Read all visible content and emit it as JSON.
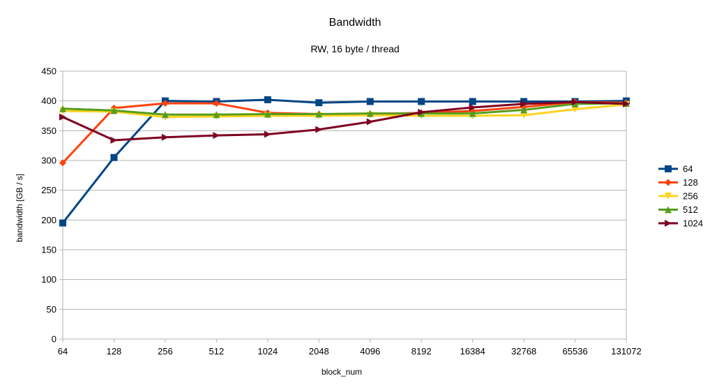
{
  "chart_data": {
    "type": "line",
    "title": "Bandwidth",
    "subtitle": "RW, 16 byte / thread",
    "xlabel": "block_num",
    "ylabel": "bandwidth [GB / s]",
    "categories": [
      "64",
      "128",
      "256",
      "512",
      "1024",
      "2048",
      "4096",
      "8192",
      "16384",
      "32768",
      "65536",
      "131072"
    ],
    "ylim": [
      0,
      450
    ],
    "yticks": [
      0,
      50,
      100,
      150,
      200,
      250,
      300,
      350,
      400,
      450
    ],
    "grid": "horizontal",
    "legend_position": "right",
    "series": [
      {
        "name": "64",
        "color": "#004586",
        "marker": "square",
        "values": [
          195,
          305,
          400,
          399,
          402,
          397,
          399,
          399,
          399,
          399,
          399,
          400
        ]
      },
      {
        "name": "128",
        "color": "#ff420e",
        "marker": "diamond",
        "values": [
          296,
          388,
          396,
          396,
          380,
          378,
          378,
          380,
          383,
          390,
          398,
          397
        ]
      },
      {
        "name": "256",
        "color": "#ffd320",
        "marker": "triangle-down",
        "values": [
          383,
          382,
          373,
          374,
          375,
          375,
          376,
          375,
          375,
          376,
          386,
          394
        ]
      },
      {
        "name": "512",
        "color": "#579d1c",
        "marker": "triangle-up",
        "values": [
          387,
          384,
          377,
          377,
          378,
          378,
          379,
          379,
          379,
          385,
          395,
          396
        ]
      },
      {
        "name": "1024",
        "color": "#7e0021",
        "marker": "triangle-right",
        "values": [
          373,
          334,
          339,
          342,
          344,
          352,
          365,
          381,
          389,
          395,
          398,
          395
        ]
      }
    ]
  }
}
